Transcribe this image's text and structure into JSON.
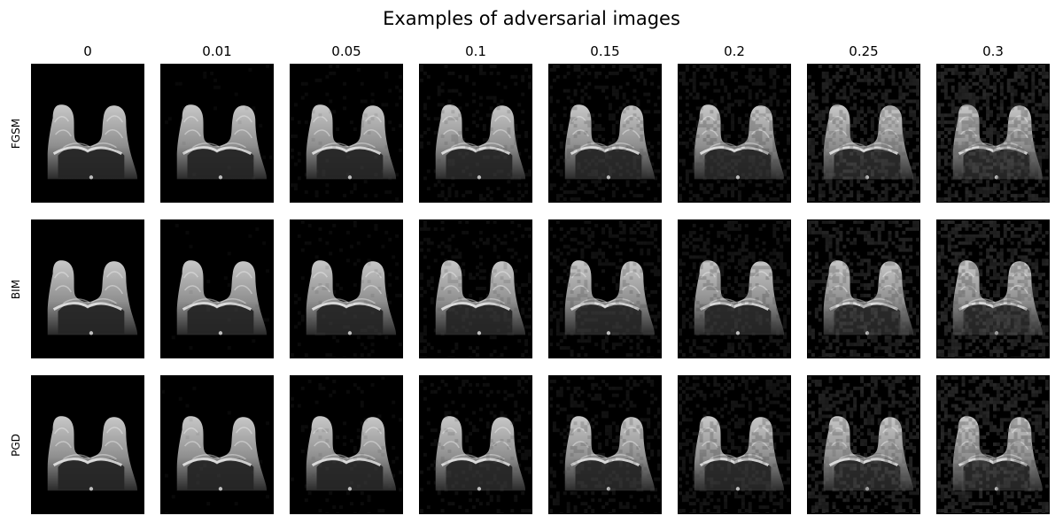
{
  "figure": {
    "title": "Examples of adversarial images",
    "columns": [
      "0",
      "0.01",
      "0.05",
      "0.1",
      "0.15",
      "0.2",
      "0.25",
      "0.3"
    ],
    "rows": [
      "FGSM",
      "BIM",
      "PGD"
    ]
  },
  "panel_noise_levels": [
    0,
    0.01,
    0.05,
    0.1,
    0.15,
    0.2,
    0.25,
    0.3
  ],
  "colors": {
    "background": "#ffffff",
    "panel_base": "#000000",
    "tissue_bright": "#c8c8c8",
    "tissue_mid": "#8f8f8f",
    "tissue_dark": "#2a2a2a"
  },
  "image_semantics": "grayscale breast MRI slices"
}
